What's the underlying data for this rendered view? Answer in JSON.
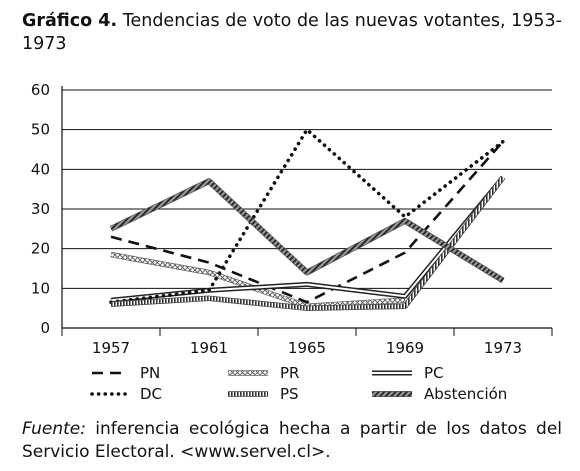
{
  "figure": {
    "label": "Gráfico 4.",
    "title": "Tendencias de voto de las nuevas votantes, 1953-1973"
  },
  "source": {
    "label": "Fuente:",
    "text": "inferencia ecológica hecha a partir de los datos del Servicio Electoral. <www.servel.cl>."
  },
  "chart_data": {
    "type": "line",
    "title": "Tendencias de voto de las nuevas votantes, 1953-1973",
    "xlabel": "",
    "ylabel": "",
    "x": [
      "1957",
      "1961",
      "1965",
      "1969",
      "1973"
    ],
    "ylim": [
      0,
      60
    ],
    "yticks": [
      0,
      10,
      20,
      30,
      40,
      50,
      60
    ],
    "grid": "horizontal",
    "legend_position": "bottom",
    "series": [
      {
        "name": "PN",
        "style": "dashed",
        "values": [
          23,
          16.5,
          6.5,
          19,
          47
        ]
      },
      {
        "name": "PR",
        "style": "hatched-light",
        "values": [
          18.5,
          14,
          5.5,
          7,
          null
        ]
      },
      {
        "name": "PC",
        "style": "double-line",
        "values": [
          7,
          9.5,
          11,
          8,
          38
        ]
      },
      {
        "name": "DC",
        "style": "dotted",
        "values": [
          6.5,
          9.5,
          50,
          28,
          47
        ]
      },
      {
        "name": "PS",
        "style": "striped",
        "values": [
          6,
          7.5,
          5,
          5.5,
          38
        ]
      },
      {
        "name": "Abstención",
        "style": "hatched-dark",
        "values": [
          25,
          37,
          14,
          27,
          12
        ]
      }
    ]
  }
}
